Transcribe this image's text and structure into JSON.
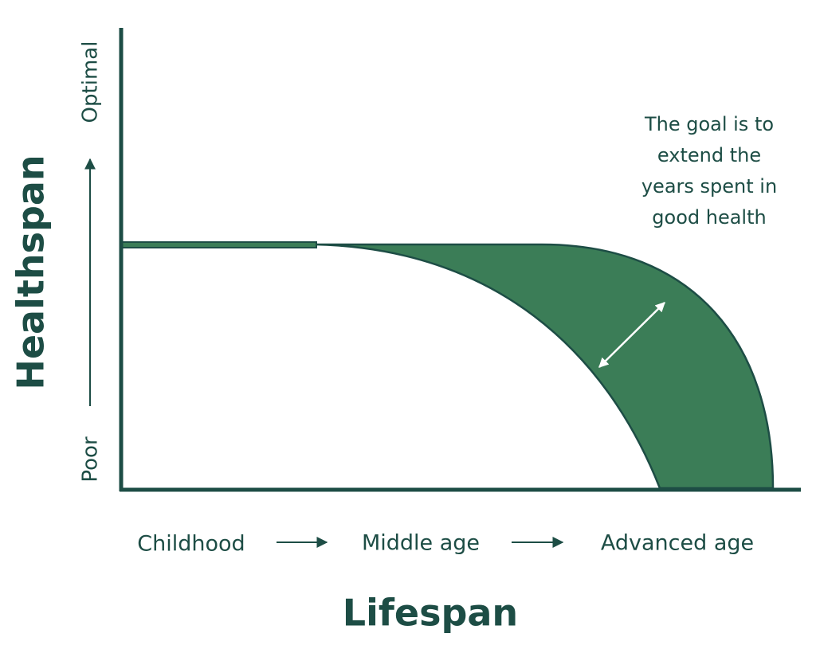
{
  "y_axis": {
    "title": "Healthspan",
    "top_label": "Optimal",
    "bottom_label": "Poor"
  },
  "x_axis": {
    "title": "Lifespan",
    "stages": [
      "Childhood",
      "Middle age",
      "Advanced age"
    ]
  },
  "annotation": {
    "lines": [
      "The goal is to",
      "extend the",
      "years spent in",
      "good health"
    ]
  }
}
